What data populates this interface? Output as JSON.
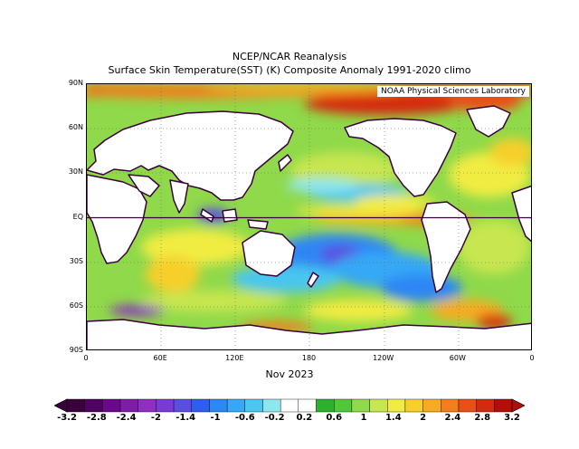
{
  "title_line1": "NCEP/NCAR Reanalysis",
  "title_line2": "Surface Skin Temperature(SST) (K) Composite Anomaly 1991-2020 climo",
  "credit": "NOAA Physical Sciences Laboratory",
  "date_label": "Nov 2023",
  "lat_labels": [
    {
      "text": "90N",
      "lat": 90
    },
    {
      "text": "60N",
      "lat": 60
    },
    {
      "text": "30N",
      "lat": 30
    },
    {
      "text": "EQ",
      "lat": 0
    },
    {
      "text": "30S",
      "lat": -30
    },
    {
      "text": "60S",
      "lat": -60
    },
    {
      "text": "90S",
      "lat": -90
    }
  ],
  "lon_labels": [
    {
      "text": "0",
      "lon": 0
    },
    {
      "text": "60E",
      "lon": 60
    },
    {
      "text": "120E",
      "lon": 120
    },
    {
      "text": "180",
      "lon": 180
    },
    {
      "text": "120W",
      "lon": 240
    },
    {
      "text": "60W",
      "lon": 300
    },
    {
      "text": "0",
      "lon": 360
    }
  ],
  "colorbar": {
    "colors": [
      "#3a003a",
      "#4f0060",
      "#6a0a8a",
      "#7e1ea8",
      "#8d2fc0",
      "#7a3ad8",
      "#5a4ee0",
      "#2e5ef0",
      "#2f86f5",
      "#36a8f6",
      "#4ac6f0",
      "#8ee6ee",
      "#ffffff",
      "#ffffff",
      "#2db02d",
      "#52c839",
      "#8fd94a",
      "#c7e650",
      "#f1ec43",
      "#f7cf2c",
      "#f6ab22",
      "#f27e1d",
      "#e85016",
      "#d42a10",
      "#b30f08"
    ],
    "labels": [
      "-3.2",
      "-2.8",
      "-2.4",
      "-2",
      "-1.4",
      "-1",
      "-0.6",
      "-0.2",
      "0.2",
      "0.6",
      "1",
      "1.4",
      "2",
      "2.4",
      "2.8",
      "3.2"
    ]
  }
}
